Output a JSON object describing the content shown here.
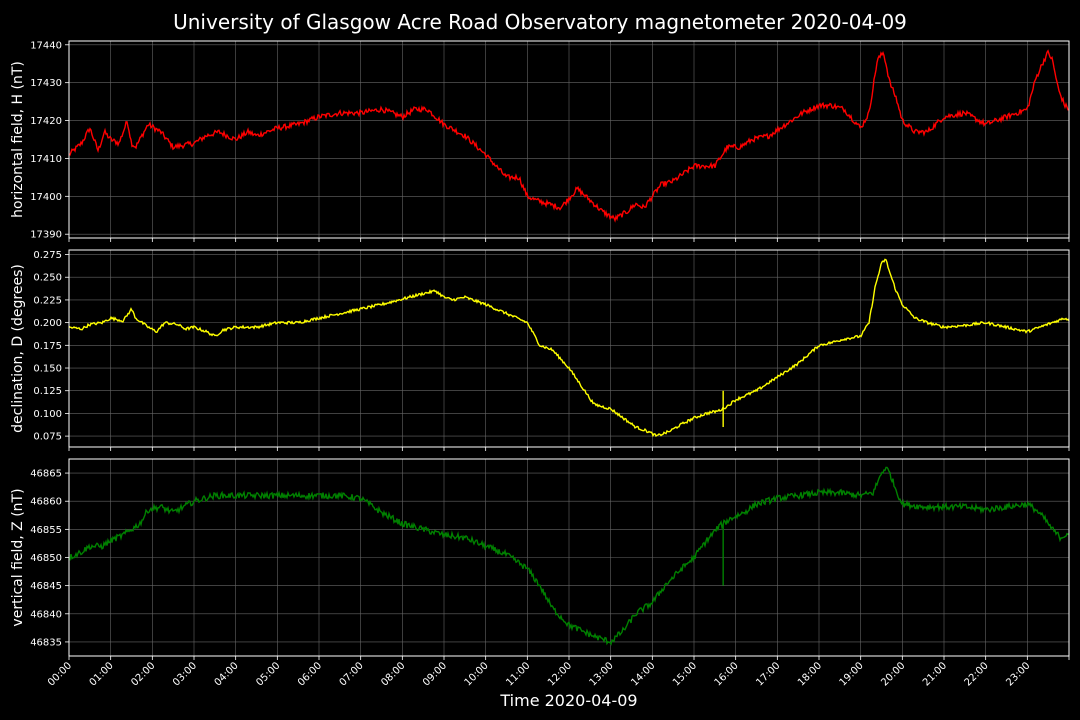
{
  "chart_data": {
    "type": "line",
    "title": "University of Glasgow Acre Road Observatory magnetometer 2020-04-09",
    "xlabel": "Time 2020-04-09",
    "x_tick_labels": [
      "00:00",
      "01:00",
      "02:00",
      "03:00",
      "04:00",
      "05:00",
      "06:00",
      "07:00",
      "08:00",
      "09:00",
      "10:00",
      "11:00",
      "12:00",
      "13:00",
      "14:00",
      "15:00",
      "16:00",
      "17:00",
      "18:00",
      "19:00",
      "20:00",
      "21:00",
      "22:00",
      "23:00"
    ],
    "x_range_hours": [
      0,
      24
    ],
    "grid": true,
    "colors": {
      "background": "#000000",
      "grid": "#666666",
      "axes": "#ffffff"
    },
    "panels": [
      {
        "ylabel": "horizontal field, H (nT)",
        "color": "#ff0000",
        "ylim": [
          17389,
          17441
        ],
        "yticks": [
          17390,
          17400,
          17410,
          17420,
          17430,
          17440
        ],
        "ytick_labels": [
          "17390",
          "17400",
          "17410",
          "17420",
          "17430",
          "17440"
        ],
        "noise": 0.7,
        "series": {
          "x": [
            0,
            0.3,
            0.5,
            0.7,
            0.85,
            1.0,
            1.2,
            1.4,
            1.5,
            1.6,
            1.75,
            1.9,
            2.2,
            2.5,
            3.0,
            3.3,
            3.6,
            4.0,
            4.3,
            4.5,
            5.0,
            5.5,
            6.0,
            6.5,
            7.0,
            7.5,
            8.0,
            8.3,
            8.6,
            9.0,
            9.5,
            10.0,
            10.5,
            10.8,
            11.0,
            11.2,
            11.5,
            11.8,
            12.2,
            12.5,
            12.8,
            13.1,
            13.4,
            13.6,
            13.8,
            14.2,
            14.5,
            15.0,
            15.5,
            15.8,
            16.1,
            16.4,
            16.8,
            17.2,
            17.6,
            18.0,
            18.3,
            18.6,
            19.0,
            19.2,
            19.4,
            19.55,
            19.7,
            19.85,
            20.0,
            20.3,
            20.6,
            21.0,
            21.5,
            22.0,
            22.5,
            23.0,
            23.2,
            23.4,
            23.5,
            23.6,
            23.75,
            23.9,
            24.0
          ],
          "y": [
            17411,
            17414,
            17418,
            17412,
            17417,
            17415,
            17414,
            17420,
            17414,
            17413,
            17416,
            17419,
            17417,
            17413,
            17414,
            17416,
            17417,
            17415,
            17417,
            17416,
            17418,
            17419,
            17421,
            17422,
            17422,
            17423,
            17421,
            17423,
            17423,
            17419,
            17416,
            17411,
            17405,
            17405,
            17400,
            17399,
            17398,
            17397,
            17402,
            17399,
            17396,
            17394,
            17396,
            17398,
            17397,
            17403,
            17404,
            17408,
            17408,
            17413,
            17413,
            17415,
            17416,
            17419,
            17422,
            17424,
            17424,
            17423,
            17418,
            17422,
            17436,
            17438,
            17430,
            17426,
            17420,
            17417,
            17417,
            17421,
            17422,
            17419,
            17421,
            17423,
            17431,
            17436,
            17438,
            17436,
            17428,
            17424,
            17423
          ],
          "spikes": []
        }
      },
      {
        "ylabel": "declination, D (degrees)",
        "color": "#ffff00",
        "ylim": [
          0.063,
          0.28
        ],
        "yticks": [
          0.075,
          0.1,
          0.125,
          0.15,
          0.175,
          0.2,
          0.225,
          0.25,
          0.275
        ],
        "ytick_labels": [
          "0.075",
          "0.100",
          "0.125",
          "0.150",
          "0.175",
          "0.200",
          "0.225",
          "0.250",
          "0.275"
        ],
        "noise": 0.0015,
        "series": {
          "x": [
            0,
            0.3,
            0.5,
            0.8,
            1.0,
            1.3,
            1.5,
            1.6,
            1.75,
            1.9,
            2.1,
            2.3,
            2.6,
            2.8,
            3.0,
            3.3,
            3.5,
            3.7,
            4.0,
            4.5,
            5.0,
            5.5,
            6.0,
            6.5,
            7.0,
            7.5,
            8.0,
            8.5,
            8.8,
            9.0,
            9.2,
            9.5,
            10.0,
            10.5,
            11.0,
            11.3,
            11.6,
            12.0,
            12.3,
            12.6,
            13.0,
            13.3,
            13.6,
            13.9,
            14.1,
            14.4,
            14.7,
            15.0,
            15.3,
            15.6,
            15.8,
            16.0,
            16.5,
            17.0,
            17.5,
            18.0,
            18.3,
            18.6,
            19.0,
            19.2,
            19.35,
            19.5,
            19.6,
            19.7,
            19.85,
            20.0,
            20.3,
            20.6,
            21.0,
            21.5,
            22.0,
            22.5,
            23.0,
            23.3,
            23.6,
            23.9,
            24.0
          ],
          "y": [
            0.195,
            0.193,
            0.198,
            0.2,
            0.205,
            0.202,
            0.215,
            0.205,
            0.2,
            0.195,
            0.19,
            0.2,
            0.198,
            0.193,
            0.195,
            0.19,
            0.185,
            0.192,
            0.195,
            0.195,
            0.2,
            0.2,
            0.205,
            0.21,
            0.215,
            0.22,
            0.226,
            0.232,
            0.235,
            0.228,
            0.225,
            0.228,
            0.22,
            0.21,
            0.2,
            0.175,
            0.17,
            0.15,
            0.13,
            0.11,
            0.105,
            0.095,
            0.085,
            0.08,
            0.075,
            0.08,
            0.088,
            0.095,
            0.1,
            0.103,
            0.108,
            0.115,
            0.125,
            0.14,
            0.155,
            0.175,
            0.178,
            0.182,
            0.185,
            0.2,
            0.24,
            0.265,
            0.27,
            0.255,
            0.235,
            0.22,
            0.205,
            0.2,
            0.195,
            0.197,
            0.2,
            0.195,
            0.19,
            0.195,
            0.2,
            0.205,
            0.203
          ],
          "spikes": [
            [
              15.7,
              0.125,
              0.085
            ]
          ]
        }
      },
      {
        "ylabel": "vertical field, Z (nT)",
        "color": "#008000",
        "ylim": [
          46832.5,
          46867.5
        ],
        "yticks": [
          46835,
          46840,
          46845,
          46850,
          46855,
          46860,
          46865
        ],
        "ytick_labels": [
          "46835",
          "46840",
          "46845",
          "46850",
          "46855",
          "46860",
          "46865"
        ],
        "noise": 0.55,
        "series": {
          "x": [
            0,
            0.3,
            0.5,
            0.8,
            1.0,
            1.3,
            1.5,
            1.7,
            1.9,
            2.2,
            2.5,
            3.0,
            3.5,
            4.0,
            4.5,
            5.0,
            5.5,
            6.0,
            6.5,
            7.0,
            7.5,
            8.0,
            8.5,
            9.0,
            9.5,
            10.0,
            10.5,
            11.0,
            11.3,
            11.6,
            12.0,
            12.3,
            12.6,
            13.0,
            13.3,
            13.6,
            14.0,
            14.3,
            14.7,
            15.0,
            15.3,
            15.6,
            15.9,
            16.2,
            16.5,
            17.0,
            17.5,
            18.0,
            18.5,
            19.0,
            19.3,
            19.5,
            19.6,
            19.7,
            19.85,
            20.0,
            20.5,
            21.0,
            21.5,
            22.0,
            22.5,
            23.0,
            23.2,
            23.4,
            23.6,
            23.8,
            24.0
          ],
          "y": [
            46850,
            46851,
            46852,
            46852,
            46853,
            46854,
            46855,
            46856,
            46858.5,
            46859,
            46858,
            46860,
            46861,
            46861,
            46861,
            46861,
            46861,
            46861,
            46861,
            46860.5,
            46858,
            46856,
            46855,
            46854,
            46853.5,
            46852,
            46850.5,
            46848,
            46845,
            46841,
            46838,
            46837,
            46836,
            46835,
            46837,
            46840,
            46842,
            46845,
            46848,
            46850,
            46853,
            46855.5,
            46857,
            46858,
            46859.5,
            46860.5,
            46861,
            46861.5,
            46861.5,
            46861,
            46861.5,
            46865,
            46866,
            46865,
            46862,
            46859.5,
            46859,
            46859,
            46859,
            46858.5,
            46859,
            46859.5,
            46858.5,
            46857,
            46855,
            46853.5,
            46854.5
          ],
          "spikes": [
            [
              15.7,
              46856,
              46845
            ]
          ]
        }
      }
    ]
  }
}
